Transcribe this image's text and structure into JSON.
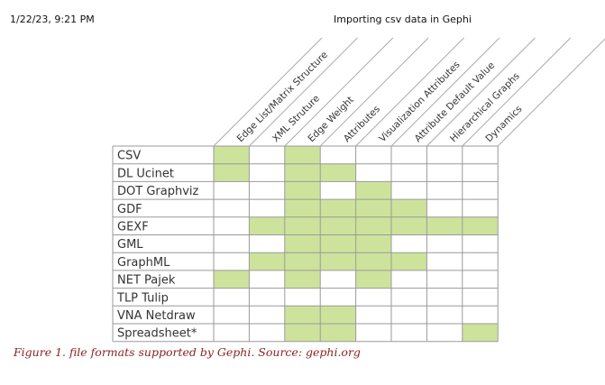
{
  "header": {
    "date": "1/22/23, 9:21 PM",
    "title": "Importing csv data in Gephi"
  },
  "table": {
    "columns": [
      "Edge List/Matrix Structure",
      "XML Struture",
      "Edge Weight",
      "Attributes",
      "Visualization Attributes",
      "Attribute Default Value",
      "Hierarchical Graphs",
      "Dynamics"
    ],
    "rows": [
      {
        "label": "CSV",
        "support": [
          1,
          0,
          1,
          0,
          0,
          0,
          0,
          0
        ]
      },
      {
        "label": "DL Ucinet",
        "support": [
          1,
          0,
          1,
          1,
          0,
          0,
          0,
          0
        ]
      },
      {
        "label": "DOT Graphviz",
        "support": [
          0,
          0,
          1,
          0,
          1,
          0,
          0,
          0
        ]
      },
      {
        "label": "GDF",
        "support": [
          0,
          0,
          1,
          1,
          1,
          1,
          0,
          0
        ]
      },
      {
        "label": "GEXF",
        "support": [
          0,
          1,
          1,
          1,
          1,
          1,
          1,
          1
        ]
      },
      {
        "label": "GML",
        "support": [
          0,
          0,
          1,
          1,
          1,
          0,
          0,
          0
        ]
      },
      {
        "label": "GraphML",
        "support": [
          0,
          1,
          1,
          1,
          1,
          1,
          0,
          0
        ]
      },
      {
        "label": "NET Pajek",
        "support": [
          1,
          0,
          1,
          0,
          1,
          0,
          0,
          0
        ]
      },
      {
        "label": "TLP Tulip",
        "support": [
          0,
          0,
          0,
          0,
          0,
          0,
          0,
          0
        ]
      },
      {
        "label": "VNA Netdraw",
        "support": [
          0,
          0,
          1,
          1,
          0,
          0,
          0,
          0
        ]
      },
      {
        "label": "Spreadsheet*",
        "support": [
          0,
          0,
          1,
          1,
          0,
          0,
          0,
          1
        ]
      }
    ],
    "colors": {
      "supported": "#cde39c",
      "grid": "#9a9a9a",
      "text": "#333333",
      "header_line": "#aaaaaa"
    }
  },
  "caption": "Figure 1. file formats supported by Gephi. Source: gephi.org"
}
